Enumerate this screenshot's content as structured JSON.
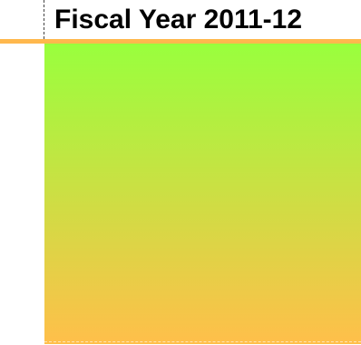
{
  "header": {
    "title": "Fiscal Year 2011-12"
  },
  "colors": {
    "rule": "#ffb84d",
    "gradient_top": "#99ff3d",
    "gradient_bottom": "#ffbf4a"
  }
}
